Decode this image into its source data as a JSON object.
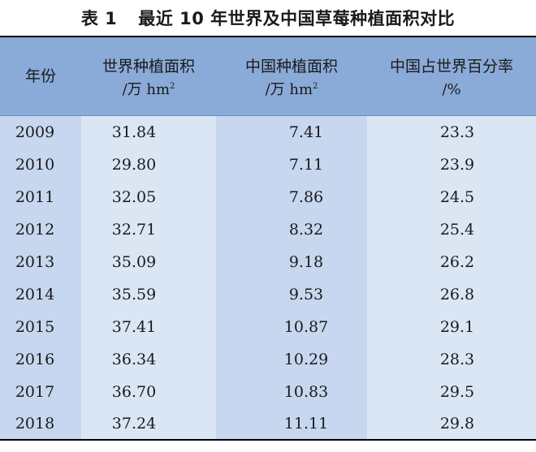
{
  "caption": {
    "number": "表 1",
    "title": "最近 10 年世界及中国草莓种植面积对比"
  },
  "headers": {
    "year": "年份",
    "world_area": "世界种植面积",
    "world_unit": "/万 hm",
    "china_area": "中国种植面积",
    "china_unit": "/万 hm",
    "unit_exp": "2",
    "share": "中国占世界百分率",
    "share_unit": "/%"
  },
  "rows": [
    {
      "year": "2009",
      "world": "31.84",
      "china": "7.41",
      "share": "23.3"
    },
    {
      "year": "2010",
      "world": "29.80",
      "china": "7.11",
      "share": "23.9"
    },
    {
      "year": "2011",
      "world": "32.05",
      "china": "7.86",
      "share": "24.5"
    },
    {
      "year": "2012",
      "world": "32.71",
      "china": "8.32",
      "share": "25.4"
    },
    {
      "year": "2013",
      "world": "35.09",
      "china": "9.18",
      "share": "26.2"
    },
    {
      "year": "2014",
      "world": "35.59",
      "china": "9.53",
      "share": "26.8"
    },
    {
      "year": "2015",
      "world": "37.41",
      "china": "10.87",
      "share": "29.1"
    },
    {
      "year": "2016",
      "world": "36.34",
      "china": "10.29",
      "share": "28.3"
    },
    {
      "year": "2017",
      "world": "36.70",
      "china": "10.83",
      "share": "29.5"
    },
    {
      "year": "2018",
      "world": "37.24",
      "china": "11.11",
      "share": "29.8"
    }
  ]
}
